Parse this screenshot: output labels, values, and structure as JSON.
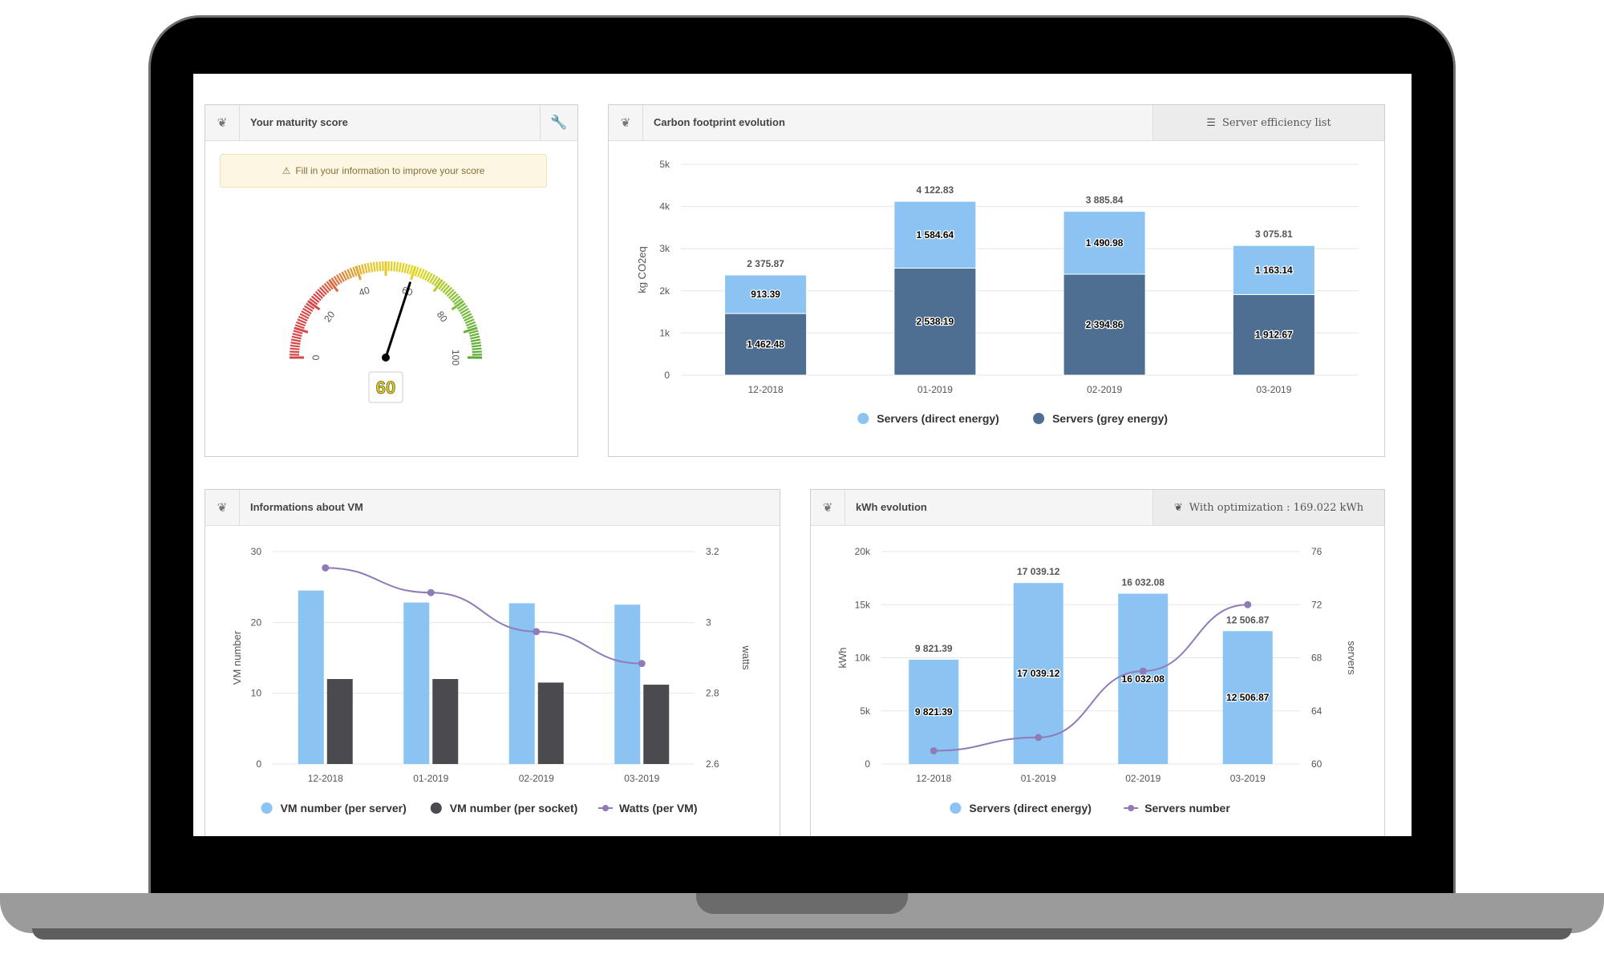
{
  "maturity": {
    "title": "Your maturity score",
    "warning": "Fill in your information to improve your score",
    "score": 60,
    "gauge_ticks": [
      "0",
      "20",
      "40",
      "60",
      "80",
      "100"
    ],
    "score_color": "#e8d400"
  },
  "carbon": {
    "title": "Carbon footprint evolution",
    "button": "Server efficiency list",
    "chart_data": {
      "type": "bar",
      "stacked": true,
      "categories": [
        "12-2018",
        "01-2019",
        "02-2019",
        "03-2019"
      ],
      "ylabel": "kg CO2eq",
      "ylim": [
        0,
        5000
      ],
      "yticks": [
        "0",
        "1k",
        "2k",
        "3k",
        "4k",
        "5k"
      ],
      "totals": [
        "2 375.87",
        "4 122.83",
        "3 885.84",
        "3 075.81"
      ],
      "series": [
        {
          "name": "Servers (grey energy)",
          "color": "#4e6f92",
          "values": [
            1462.48,
            2538.19,
            2394.86,
            1912.67
          ],
          "labels": [
            "1 462.48",
            "2 538.19",
            "2 394.86",
            "1 912.67"
          ]
        },
        {
          "name": "Servers (direct energy)",
          "color": "#8bc3f2",
          "values": [
            913.39,
            1584.64,
            1490.98,
            1163.14
          ],
          "labels": [
            "913.39",
            "1 584.64",
            "1 490.98",
            "1 163.14"
          ]
        }
      ],
      "legend": [
        "Servers (direct energy)",
        "Servers (grey energy)"
      ],
      "legend_colors": [
        "#8bc3f2",
        "#4e6f92"
      ]
    }
  },
  "vm": {
    "title": "Informations about VM",
    "chart_data": {
      "type": "bar",
      "categories": [
        "12-2018",
        "01-2019",
        "02-2019",
        "03-2019"
      ],
      "ylabel": "VM number",
      "y2label": "watts",
      "ylim": [
        0,
        30
      ],
      "y2lim": [
        2.6,
        3.2
      ],
      "yticks": [
        "0",
        "10",
        "20",
        "30"
      ],
      "y2ticks": [
        "2.6",
        "2.8",
        "3",
        "3.2"
      ],
      "series": [
        {
          "name": "VM number (per server)",
          "type": "bar",
          "color": "#8bc3f2",
          "values": [
            24.5,
            22.8,
            22.7,
            22.5
          ]
        },
        {
          "name": "VM number (per socket)",
          "type": "bar",
          "color": "#4a4a4f",
          "values": [
            12.0,
            12.0,
            11.5,
            11.2
          ]
        },
        {
          "name": "Watts (per VM)",
          "type": "line",
          "axis": "y2",
          "color": "#8f7bb6",
          "values": [
            3.154,
            3.084,
            2.974,
            2.884
          ]
        }
      ]
    }
  },
  "kwh": {
    "title": "kWh evolution",
    "button": "With optimization : 169.022 kWh",
    "chart_data": {
      "type": "bar",
      "categories": [
        "12-2018",
        "01-2019",
        "02-2019",
        "03-2019"
      ],
      "ylabel": "kWh",
      "y2label": "servers",
      "ylim": [
        0,
        20000
      ],
      "y2lim": [
        60,
        76
      ],
      "yticks": [
        "0",
        "5k",
        "10k",
        "15k",
        "20k"
      ],
      "y2ticks": [
        "60",
        "64",
        "68",
        "72",
        "76"
      ],
      "series": [
        {
          "name": "Servers (direct energy)",
          "type": "bar",
          "color": "#8bc3f2",
          "values": [
            9821.39,
            17039.12,
            16032.08,
            12506.87
          ],
          "labels": [
            "9 821.39",
            "17 039.12",
            "16 032.08",
            "12 506.87"
          ]
        },
        {
          "name": "Servers number",
          "type": "line",
          "axis": "y2",
          "color": "#8f7bb6",
          "values": [
            61.0,
            62.0,
            67.0,
            72.0
          ]
        }
      ]
    }
  }
}
